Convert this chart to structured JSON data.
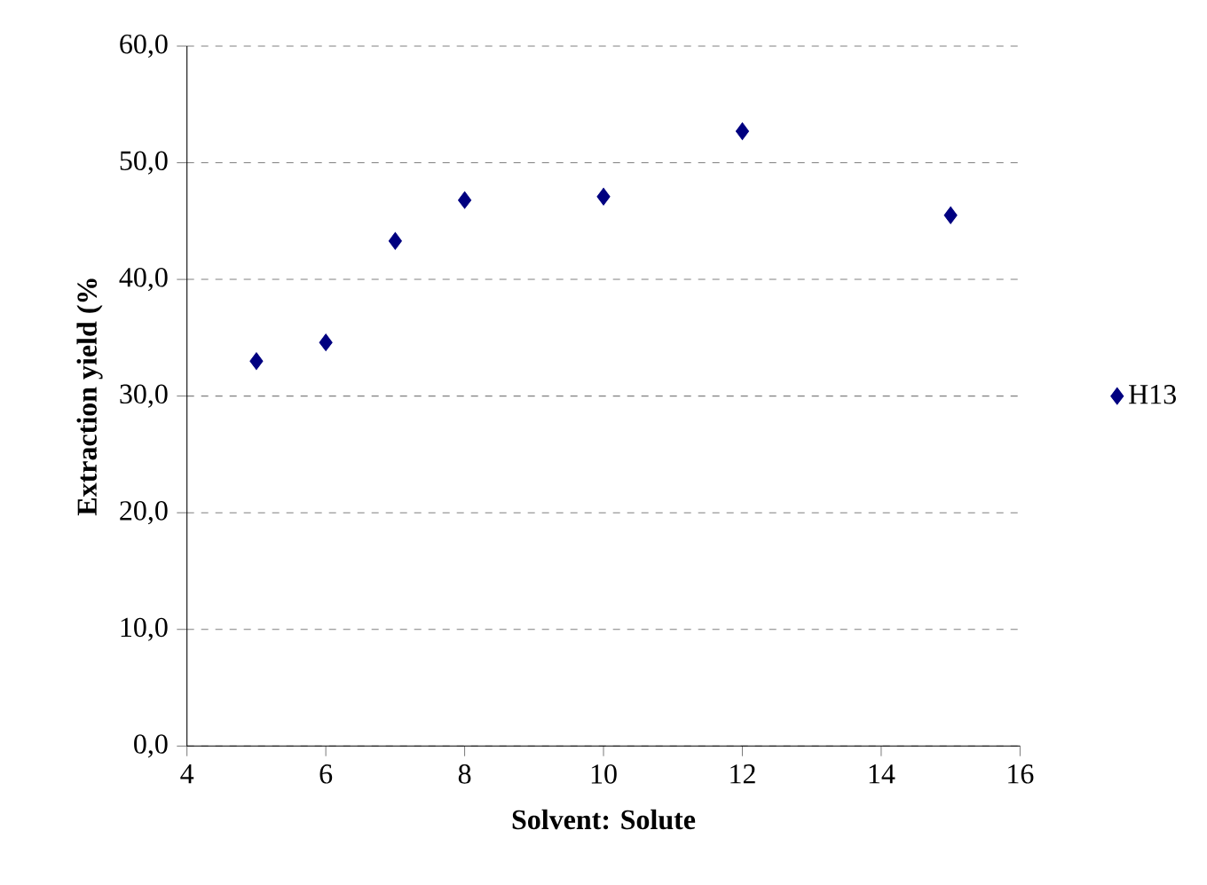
{
  "chart_data": {
    "type": "scatter",
    "xlabel": "Solvent: Solute",
    "ylabel": "Extraction yield (%",
    "x": [
      5,
      6,
      7,
      8,
      10,
      12,
      15
    ],
    "series": [
      {
        "name": "H13",
        "color": "#000080",
        "values": [
          33.0,
          34.6,
          43.3,
          46.8,
          47.1,
          52.7,
          45.5
        ]
      }
    ],
    "xlim": [
      4,
      16
    ],
    "xticks": [
      4,
      6,
      8,
      10,
      12,
      14,
      16
    ],
    "ylim": [
      0,
      60
    ],
    "yticks": [
      {
        "value": 0,
        "label": "0,0"
      },
      {
        "value": 10,
        "label": "10,0"
      },
      {
        "value": 20,
        "label": "20,0"
      },
      {
        "value": 30,
        "label": "30,0"
      },
      {
        "value": 40,
        "label": "40,0"
      },
      {
        "value": 50,
        "label": "50,0"
      },
      {
        "value": 60,
        "label": "60,0"
      }
    ],
    "grid": "y",
    "legend": "right",
    "marker": "diamond"
  }
}
